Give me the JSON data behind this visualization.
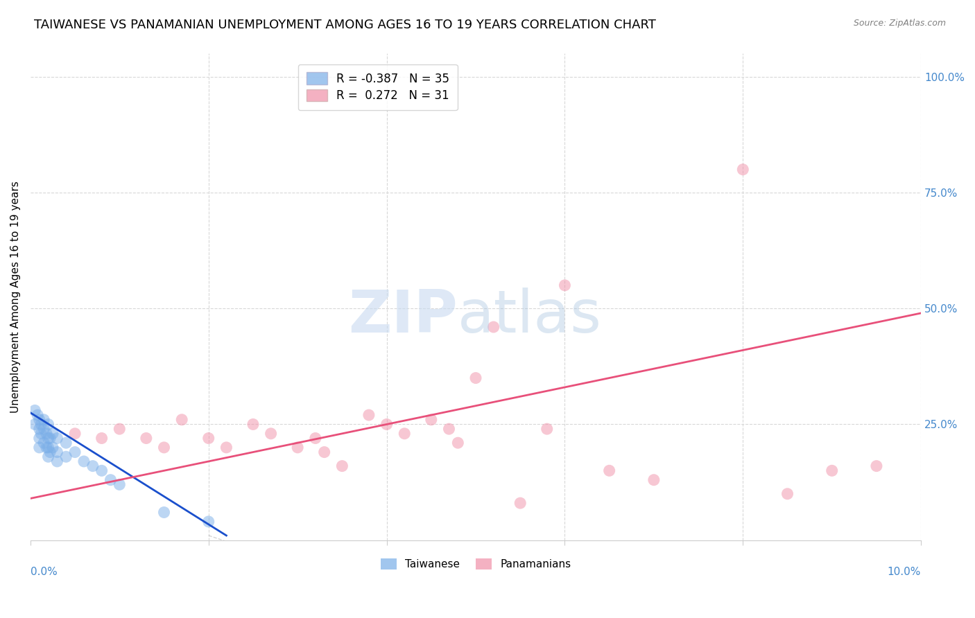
{
  "title": "TAIWANESE VS PANAMANIAN UNEMPLOYMENT AMONG AGES 16 TO 19 YEARS CORRELATION CHART",
  "source": "Source: ZipAtlas.com",
  "ylabel": "Unemployment Among Ages 16 to 19 years",
  "x_min": 0.0,
  "x_max": 0.1,
  "y_min": 0.0,
  "y_max": 1.05,
  "right_yticks": [
    0.0,
    0.25,
    0.5,
    0.75,
    1.0
  ],
  "right_yticklabels": [
    "",
    "25.0%",
    "50.0%",
    "75.0%",
    "100.0%"
  ],
  "taiwan_color": "#7aaee8",
  "panama_color": "#f090a8",
  "taiwan_line_color": "#1a4fcc",
  "panama_line_color": "#e8507a",
  "background_color": "#ffffff",
  "grid_color": "#d8d8d8",
  "title_fontsize": 13,
  "marker_size": 150,
  "marker_alpha": 0.5,
  "taiwan_points_x": [
    0.0005,
    0.0005,
    0.0008,
    0.001,
    0.001,
    0.001,
    0.001,
    0.0012,
    0.0012,
    0.0015,
    0.0015,
    0.0015,
    0.0018,
    0.0018,
    0.002,
    0.002,
    0.002,
    0.002,
    0.0022,
    0.0022,
    0.0025,
    0.0025,
    0.003,
    0.003,
    0.003,
    0.004,
    0.004,
    0.005,
    0.006,
    0.007,
    0.008,
    0.009,
    0.01,
    0.015,
    0.02
  ],
  "taiwan_points_y": [
    0.28,
    0.25,
    0.27,
    0.26,
    0.24,
    0.22,
    0.2,
    0.25,
    0.23,
    0.26,
    0.24,
    0.21,
    0.23,
    0.2,
    0.25,
    0.22,
    0.2,
    0.18,
    0.22,
    0.19,
    0.23,
    0.2,
    0.22,
    0.19,
    0.17,
    0.21,
    0.18,
    0.19,
    0.17,
    0.16,
    0.15,
    0.13,
    0.12,
    0.06,
    0.04
  ],
  "panama_points_x": [
    0.005,
    0.008,
    0.01,
    0.013,
    0.015,
    0.017,
    0.02,
    0.022,
    0.025,
    0.027,
    0.03,
    0.032,
    0.033,
    0.035,
    0.038,
    0.04,
    0.042,
    0.045,
    0.047,
    0.048,
    0.05,
    0.052,
    0.055,
    0.058,
    0.06,
    0.065,
    0.07,
    0.08,
    0.085,
    0.09,
    0.095
  ],
  "panama_points_y": [
    0.23,
    0.22,
    0.24,
    0.22,
    0.2,
    0.26,
    0.22,
    0.2,
    0.25,
    0.23,
    0.2,
    0.22,
    0.19,
    0.16,
    0.27,
    0.25,
    0.23,
    0.26,
    0.24,
    0.21,
    0.35,
    0.46,
    0.08,
    0.24,
    0.55,
    0.15,
    0.13,
    0.8,
    0.1,
    0.15,
    0.16
  ],
  "taiwan_line_x": [
    0.0,
    0.022
  ],
  "taiwan_line_y": [
    0.275,
    0.01
  ],
  "panama_line_x": [
    0.0,
    0.1
  ],
  "panama_line_y": [
    0.09,
    0.49
  ]
}
